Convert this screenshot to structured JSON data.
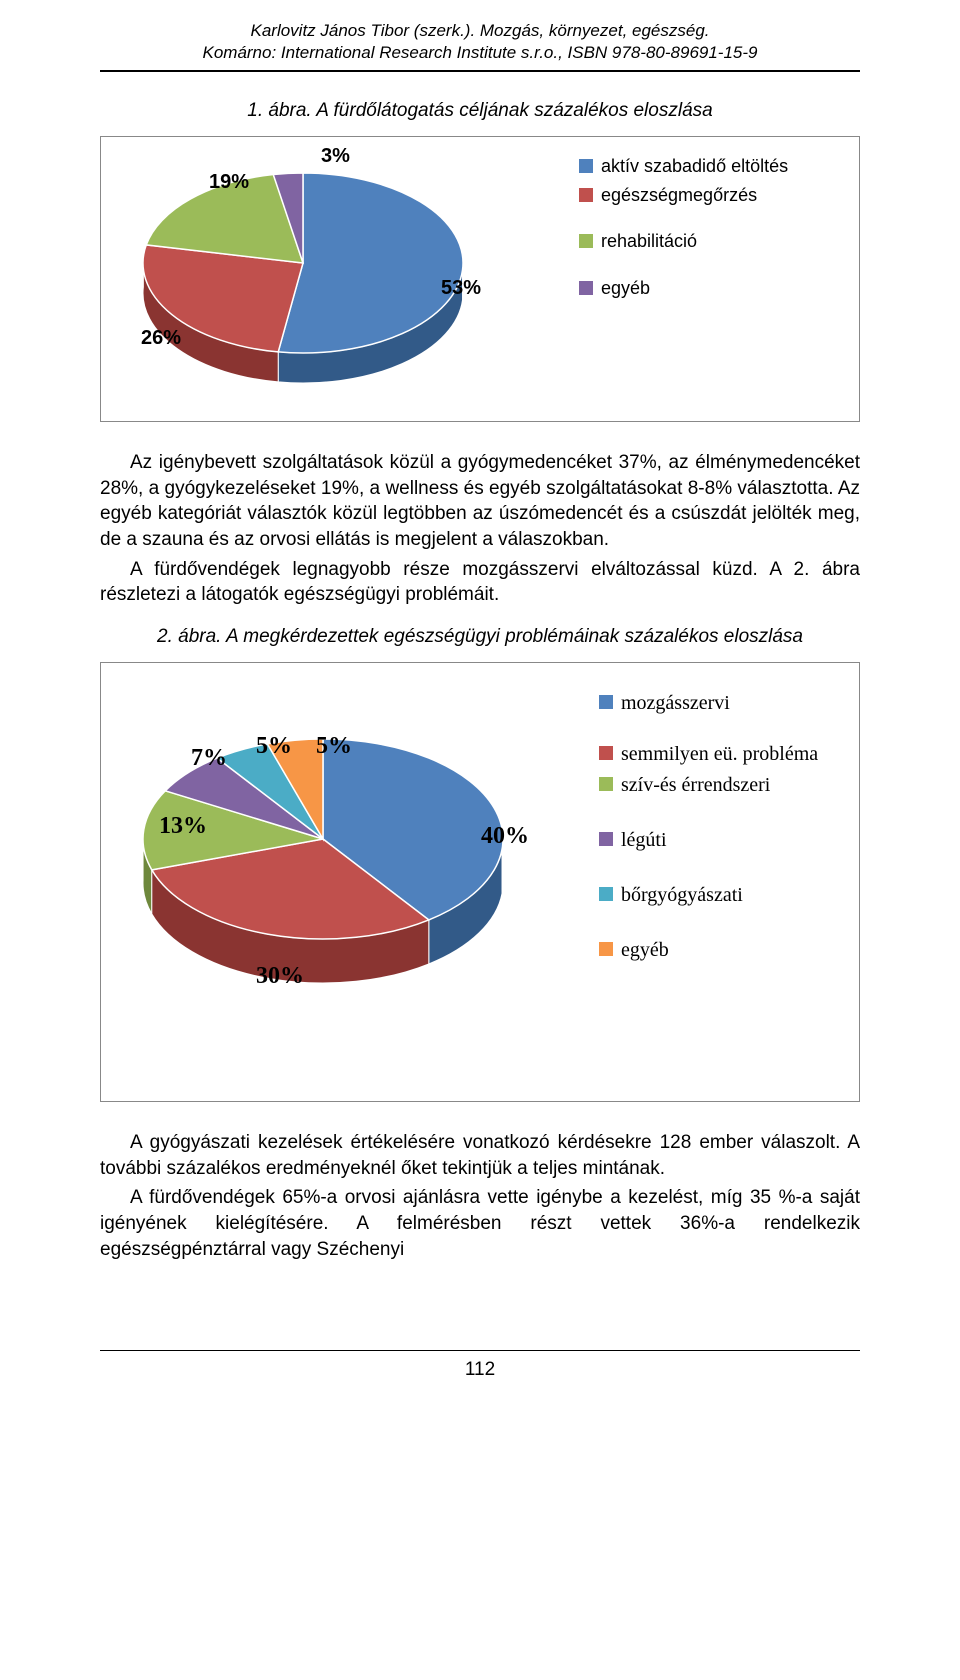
{
  "header": {
    "line1": "Karlovitz János Tibor (szerk.). Mozgás, környezet, egészség.",
    "line2": "Komárno: International Research Institute s.r.o., ISBN 978-80-89691-15-9"
  },
  "chart1": {
    "type": "pie",
    "caption": "1. ábra. A fürdőlátogatás céljának százalékos eloszlása",
    "slices": [
      {
        "label": "aktív szabadidő eltöltés",
        "value": 53,
        "pct_label": "53%",
        "top_color": "#4f81bd",
        "side_color": "#325a88"
      },
      {
        "label": "egészségmegőrzés",
        "value": 26,
        "pct_label": "26%",
        "top_color": "#c0504d",
        "side_color": "#8a3431"
      },
      {
        "label": "rehabilitáció",
        "value": 19,
        "pct_label": "19%",
        "top_color": "#9bbb59",
        "side_color": "#6e883c"
      },
      {
        "label": "egyéb",
        "value": 3,
        "pct_label": "3%",
        "top_color": "#8064a2",
        "side_color": "#5a4675"
      }
    ],
    "background_color": "#ffffff",
    "label_fontsize": 20,
    "legend_fontsize": 18
  },
  "para1_lines": [
    "Az igénybevett szolgáltatások közül a gyógymedencéket 37%, az élménymedencéket 28%, a gyógykezeléseket 19%, a wellness és egyéb szolgáltatásokat 8-8% választotta. Az egyéb kategóriát választók közül legtöbben az úszómedencét és a csúszdát jelölték meg, de a szauna és az orvosi ellátás is megjelent a válaszokban.",
    "A fürdővendégek legnagyobb része mozgásszervi elváltozással küzd. A 2. ábra részletezi a látogatók egészségügyi problémáit."
  ],
  "chart2": {
    "type": "pie",
    "caption": "2. ábra. A megkérdezettek egészségügyi problémáinak százalékos eloszlása",
    "slices": [
      {
        "label": "mozgásszervi",
        "value": 40,
        "pct_label": "40%",
        "top_color": "#4f81bd",
        "side_color": "#325a88"
      },
      {
        "label": "semmilyen eü. probléma",
        "value": 30,
        "pct_label": "30%",
        "top_color": "#c0504d",
        "side_color": "#8a3431"
      },
      {
        "label": "szív-és érrendszeri",
        "value": 13,
        "pct_label": "13%",
        "top_color": "#9bbb59",
        "side_color": "#6e883c"
      },
      {
        "label": "légúti",
        "value": 7,
        "pct_label": "7%",
        "top_color": "#8064a2",
        "side_color": "#5a4675"
      },
      {
        "label": "bőrgyógyászati",
        "value": 5,
        "pct_label": "5%",
        "top_color": "#4bacc6",
        "side_color": "#2f7a8e"
      },
      {
        "label": "egyéb",
        "value": 5,
        "pct_label": "5%",
        "top_color": "#f79646",
        "side_color": "#b86a2b"
      }
    ],
    "background_color": "#ffffff",
    "label_fontsize": 20,
    "legend_fontsize": 18
  },
  "para2_lines": [
    "A gyógyászati kezelések értékelésére vonatkozó kérdésekre 128 ember válaszolt. A további százalékos eredményeknél őket tekintjük a teljes mintának.",
    "A fürdővendégek 65%-a orvosi ajánlásra vette igénybe a kezelést, míg 35 %-a saját igényének kielégítésére. A felmérésben részt vettek 36%-a rendelkezik egészségpénztárral vagy Széchenyi"
  ],
  "page_number": "112"
}
